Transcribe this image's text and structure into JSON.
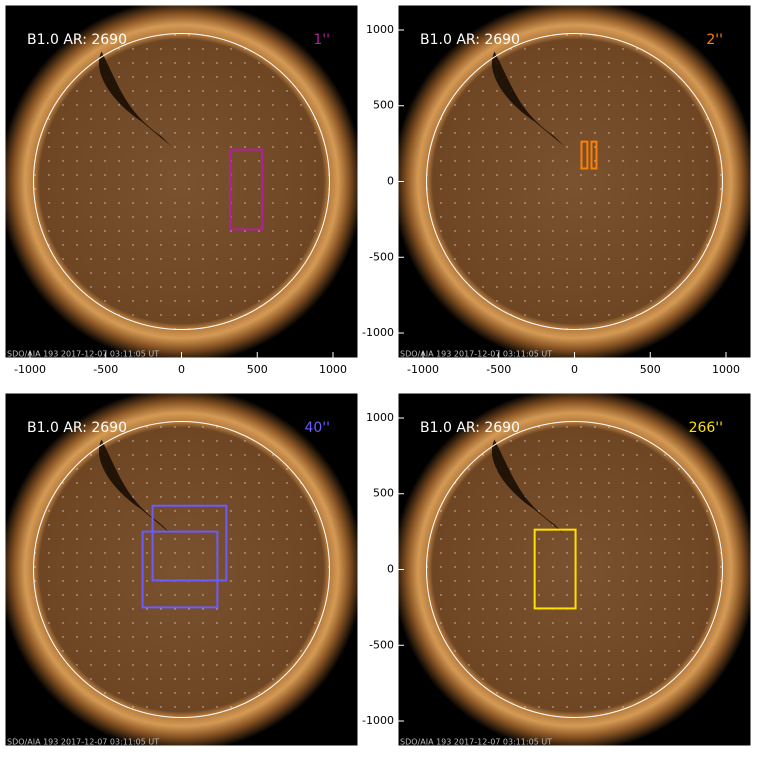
{
  "chart_data": [
    {
      "type": "image",
      "title": "B1.0 AR: 2690",
      "label": "1''",
      "color": "#b0209a",
      "footer": "SDO/AIA 193  2017-12-07 03:11:05 UT",
      "xlim": [
        -1165,
        1165
      ],
      "ylim": [
        -1165,
        1165
      ],
      "xticks": [
        -1000,
        -500,
        0,
        500,
        1000
      ],
      "boxes": [
        {
          "x0": 322,
          "x1": 533,
          "y0": -316,
          "y1": 210
        }
      ]
    },
    {
      "type": "image",
      "title": "B1.0 AR: 2690",
      "label": "2''",
      "color": "#ff7f00",
      "footer": "SDO/AIA 193  2017-12-07 03:11:05 UT",
      "xlim": [
        -1165,
        1165
      ],
      "ylim": [
        -1165,
        1165
      ],
      "xticks": [
        -1000,
        -500,
        0,
        500,
        1000
      ],
      "yticks": [
        -1000,
        -500,
        0,
        500,
        1000
      ],
      "boxes": [
        {
          "x0": 46,
          "x1": 85,
          "y0": 86,
          "y1": 263
        },
        {
          "x0": 112,
          "x1": 145,
          "y0": 86,
          "y1": 263
        }
      ]
    },
    {
      "type": "image",
      "title": "B1.0 AR: 2690",
      "label": "40''",
      "color": "#6a5cff",
      "footer": "SDO/AIA 193  2017-12-07 03:11:05 UT",
      "xlim": [
        -1165,
        1165
      ],
      "ylim": [
        -1165,
        1165
      ],
      "boxes": [
        {
          "x0": -191,
          "x1": 296,
          "y0": -72,
          "y1": 421
        },
        {
          "x0": -257,
          "x1": 237,
          "y0": -250,
          "y1": 250
        }
      ]
    },
    {
      "type": "image",
      "title": "B1.0 AR: 2690",
      "label": "266''",
      "color": "#ffe000",
      "footer": "SDO/AIA 193  2017-12-07 03:11:05 UT",
      "xlim": [
        -1165,
        1165
      ],
      "ylim": [
        -1165,
        1165
      ],
      "yticks": [
        -1000,
        -500,
        0,
        500,
        1000
      ],
      "boxes": [
        {
          "x0": -263,
          "x1": 7,
          "y0": -257,
          "y1": 263
        }
      ]
    }
  ]
}
